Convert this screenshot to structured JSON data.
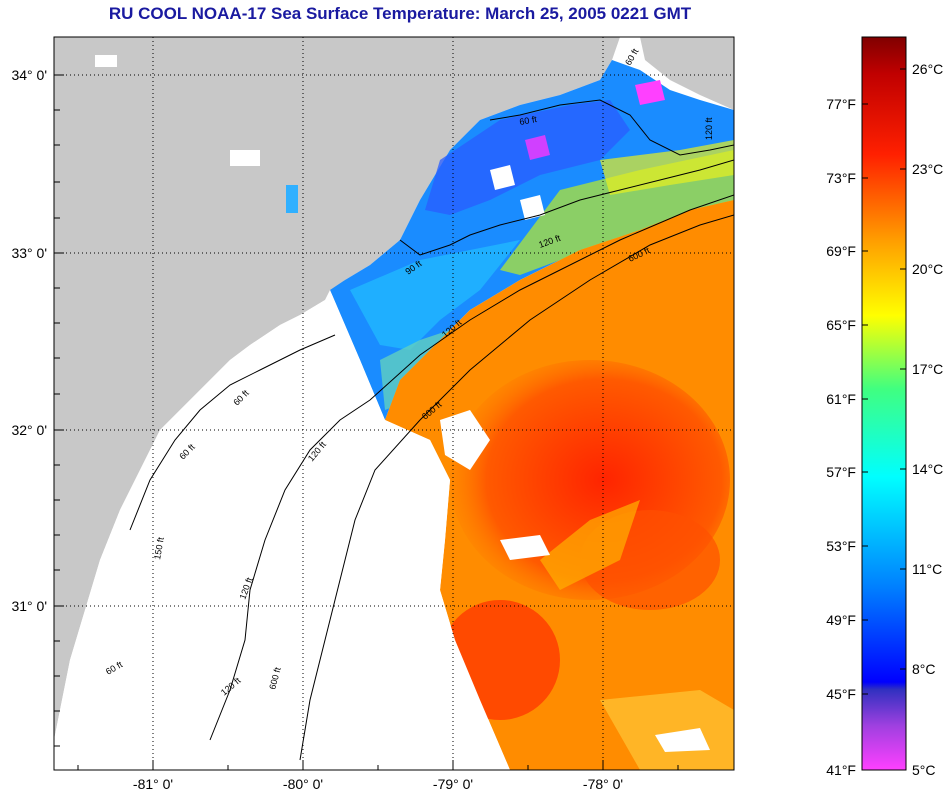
{
  "title": "RU COOL  NOAA-17  Sea Surface Temperature:  March 25, 2005 0221 GMT",
  "map": {
    "lat_labels": [
      "34° 0'",
      "33° 0'",
      "32° 0'",
      "31° 0'"
    ],
    "lon_labels": [
      "-81° 0'",
      "-80° 0'",
      "-79° 0'",
      "-78° 0'"
    ],
    "contour_labels": [
      "60 ft",
      "90 ft",
      "120 ft",
      "600 ft",
      "60 ft",
      "120 ft",
      "120 ft",
      "600 ft",
      "60 ft",
      "120 ft",
      "600 ft",
      "60 ft",
      "150 ft",
      "120 ft",
      "120 ft",
      "60 ft"
    ]
  },
  "colorbar": {
    "f_labels": [
      "77°F",
      "73°F",
      "69°F",
      "65°F",
      "61°F",
      "57°F",
      "53°F",
      "49°F",
      "45°F",
      "41°F"
    ],
    "c_labels": [
      "26°C",
      "23°C",
      "20°C",
      "17°C",
      "14°C",
      "11°C",
      "8°C",
      "5°C"
    ]
  },
  "colors": {
    "land": "#c8c8c8",
    "title": "#1a1aa0",
    "warm": "#ff3000",
    "orange": "#ff8c00",
    "cool": "#00a0ff",
    "cold": "#2040ff"
  }
}
